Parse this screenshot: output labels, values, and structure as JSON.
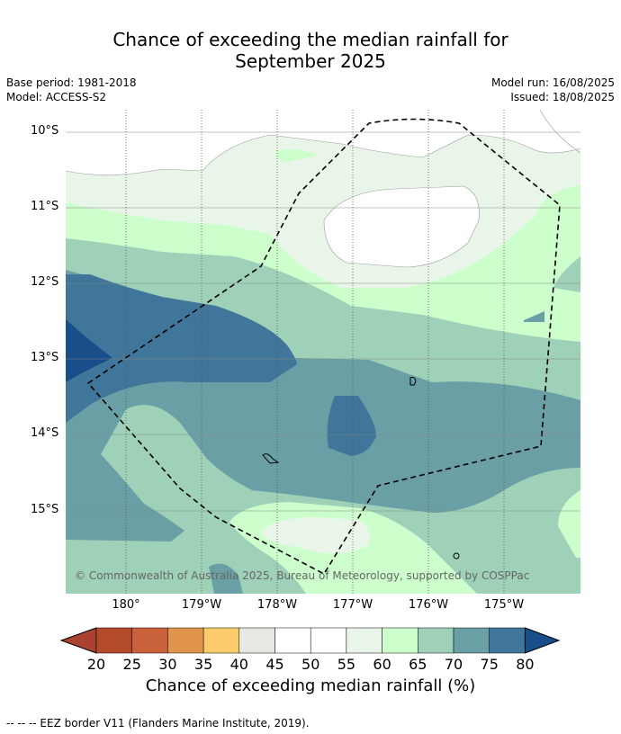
{
  "header": {
    "title_line1": "Chance of exceeding the median rainfall for",
    "title_line2": "September 2025",
    "base_period": "Base period: 1981-2018",
    "model": "Model: ACCESS-S2",
    "model_run": "Model run: 16/08/2025",
    "issued": "Issued: 18/08/2025"
  },
  "axes": {
    "lat_labels": [
      "10°S",
      "11°S",
      "12°S",
      "13°S",
      "14°S",
      "15°S"
    ],
    "lon_labels": [
      "180°",
      "179°W",
      "178°W",
      "177°W",
      "176°W",
      "175°W"
    ]
  },
  "map": {
    "copyright": "© Commonwealth of Australia 2025, Bureau of Meteorology, supported by COSPPac"
  },
  "colorbar": {
    "ticks": [
      "20",
      "25",
      "30",
      "35",
      "40",
      "45",
      "50",
      "55",
      "60",
      "65",
      "70",
      "75",
      "80"
    ],
    "title": "Chance of exceeding median rainfall (%)",
    "colors": [
      "#a9432f",
      "#b34a29",
      "#c9623a",
      "#e0944c",
      "#fccb6c",
      "#e8e8e4",
      "#ffffff",
      "#ffffff",
      "#eaf5ea",
      "#ccffcc",
      "#9ed1b8",
      "#6aa0a5",
      "#3f7699",
      "#184e8a"
    ]
  },
  "footer": {
    "legend": "--  --  -- EEZ border V11 (Flanders Marine Institute, 2019)."
  }
}
